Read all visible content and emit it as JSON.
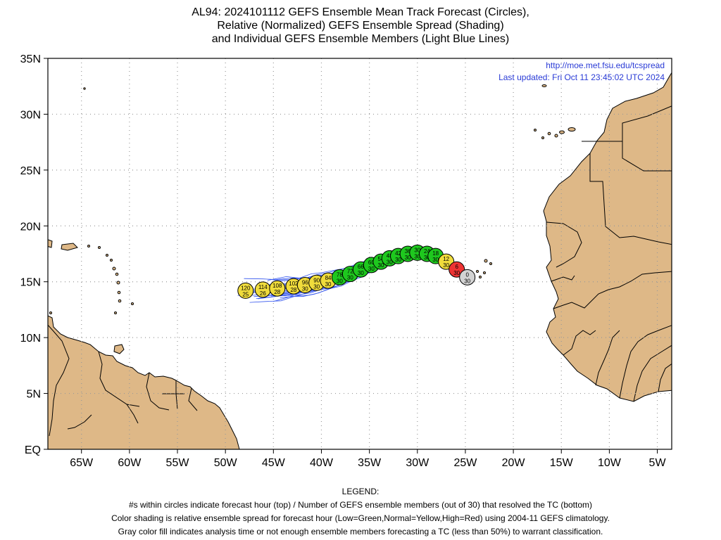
{
  "header": {
    "title_line1": "AL94: 2024101112 GEFS Ensemble Mean Track Forecast (Circles),",
    "title_line2": "Relative (Normalized) GEFS Ensemble Spread (Shading)",
    "title_line3": "and Individual GEFS Ensemble Members (Light Blue Lines)"
  },
  "credit": {
    "url": "http://moe.met.fsu.edu/tcspread",
    "updated": "Last updated: Fri Oct 11 23:45:02 UTC 2024"
  },
  "axes": {
    "lat_labels": [
      "35N",
      "30N",
      "25N",
      "20N",
      "15N",
      "10N",
      "5N",
      "EQ"
    ],
    "lon_labels": [
      "65W",
      "60W",
      "55W",
      "50W",
      "45W",
      "40W",
      "35W",
      "30W",
      "25W",
      "20W",
      "15W",
      "10W",
      "5W"
    ],
    "lon_range": [
      "68.5W",
      "3.5W"
    ],
    "lat_range": [
      "0N",
      "35N"
    ],
    "grid": true
  },
  "colors": {
    "land": "#deb887",
    "ocean": "#ffffff",
    "member_tracks": "#3355ee",
    "low_spread": "#1ec81e",
    "normal_spread": "#f0dc3c",
    "high_spread": "#ee3333",
    "analysis_gray": "#d3d3d3",
    "credit_text": "#2a3bd6"
  },
  "track": [
    {
      "hour": "0",
      "members": "30",
      "lon": -24.8,
      "lat": 15.4,
      "spread": "gray"
    },
    {
      "hour": "6",
      "members": "30",
      "lon": -25.9,
      "lat": 16.1,
      "spread": "high"
    },
    {
      "hour": "12",
      "members": "30",
      "lon": -27.0,
      "lat": 16.8,
      "spread": "normal"
    },
    {
      "hour": "18",
      "members": "30",
      "lon": -28.1,
      "lat": 17.3,
      "spread": "low"
    },
    {
      "hour": "24",
      "members": "30",
      "lon": -29.0,
      "lat": 17.5,
      "spread": "low"
    },
    {
      "hour": "30",
      "members": "30",
      "lon": -30.0,
      "lat": 17.6,
      "spread": "low"
    },
    {
      "hour": "36",
      "members": "30",
      "lon": -31.0,
      "lat": 17.5,
      "spread": "low"
    },
    {
      "hour": "42",
      "members": "30",
      "lon": -32.0,
      "lat": 17.3,
      "spread": "low"
    },
    {
      "hour": "48",
      "members": "30",
      "lon": -32.9,
      "lat": 17.1,
      "spread": "low"
    },
    {
      "hour": "54",
      "members": "30",
      "lon": -33.8,
      "lat": 16.8,
      "spread": "low"
    },
    {
      "hour": "60",
      "members": "30",
      "lon": -34.8,
      "lat": 16.5,
      "spread": "low"
    },
    {
      "hour": "66",
      "members": "30",
      "lon": -35.9,
      "lat": 16.1,
      "spread": "low"
    },
    {
      "hour": "72",
      "members": "30",
      "lon": -37.0,
      "lat": 15.7,
      "spread": "low"
    },
    {
      "hour": "78",
      "members": "30",
      "lon": -38.1,
      "lat": 15.4,
      "spread": "low"
    },
    {
      "hour": "84",
      "members": "30",
      "lon": -39.3,
      "lat": 15.1,
      "spread": "normal"
    },
    {
      "hour": "90",
      "members": "30",
      "lon": -40.5,
      "lat": 14.9,
      "spread": "normal"
    },
    {
      "hour": "96",
      "members": "30",
      "lon": -41.7,
      "lat": 14.7,
      "spread": "normal"
    },
    {
      "hour": "102",
      "members": "28",
      "lon": -42.9,
      "lat": 14.6,
      "spread": "normal"
    },
    {
      "hour": "108",
      "members": "28",
      "lon": -44.6,
      "lat": 14.4,
      "spread": "normal"
    },
    {
      "hour": "114",
      "members": "26",
      "lon": -46.1,
      "lat": 14.3,
      "spread": "normal"
    },
    {
      "hour": "120",
      "members": "25",
      "lon": -47.9,
      "lat": 14.2,
      "spread": "normal"
    }
  ],
  "legend": {
    "heading": "LEGEND:",
    "line1": "#s within circles indicate forecast hour (top) / Number of GEFS ensemble members (out of 30) that resolved the TC (bottom)",
    "line2": "Color shading is relative ensemble spread for forecast hour (Low=Green,Normal=Yellow,High=Red) using 2004-11 GEFS climatology.",
    "line3": "Gray color fill indicates analysis time or not enough ensemble members forecasting a TC (less than 50%) to warrant classification."
  }
}
